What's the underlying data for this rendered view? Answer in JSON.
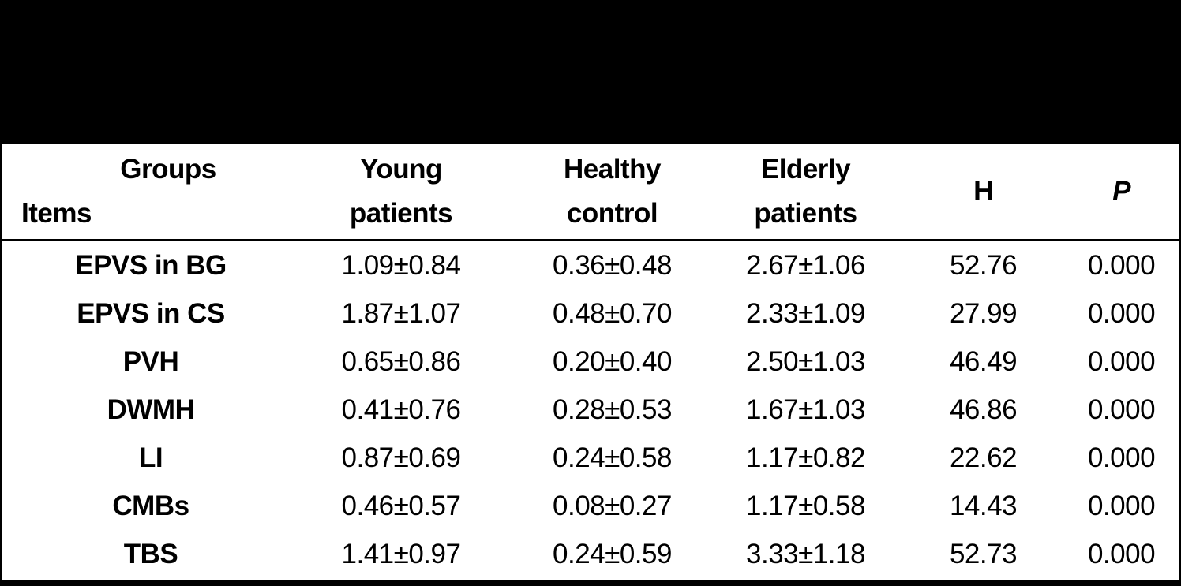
{
  "colors": {
    "band_background": "#000000",
    "table_background": "#ffffff",
    "text": "#000000",
    "border": "#000000"
  },
  "table": {
    "header": {
      "corner_top": "Groups",
      "corner_bottom": "Items",
      "col_young": {
        "line1": "Young",
        "line2": "patients"
      },
      "col_healthy": {
        "line1": "Healthy",
        "line2": "control"
      },
      "col_elderly": {
        "line1": "Elderly",
        "line2": "patients"
      },
      "col_h": "H",
      "col_p": "P"
    },
    "rows": [
      {
        "item": "EPVS in BG",
        "young": "1.09±0.84",
        "healthy": "0.36±0.48",
        "elderly": "2.67±1.06",
        "h": "52.76",
        "p": "0.000"
      },
      {
        "item": "EPVS in CS",
        "young": "1.87±1.07",
        "healthy": "0.48±0.70",
        "elderly": "2.33±1.09",
        "h": "27.99",
        "p": "0.000"
      },
      {
        "item": "PVH",
        "young": "0.65±0.86",
        "healthy": "0.20±0.40",
        "elderly": "2.50±1.03",
        "h": "46.49",
        "p": "0.000"
      },
      {
        "item": "DWMH",
        "young": "0.41±0.76",
        "healthy": "0.28±0.53",
        "elderly": "1.67±1.03",
        "h": "46.86",
        "p": "0.000"
      },
      {
        "item": "LI",
        "young": "0.87±0.69",
        "healthy": "0.24±0.58",
        "elderly": "1.17±0.82",
        "h": "22.62",
        "p": "0.000"
      },
      {
        "item": "CMBs",
        "young": "0.46±0.57",
        "healthy": "0.08±0.27",
        "elderly": "1.17±0.58",
        "h": "14.43",
        "p": "0.000"
      },
      {
        "item": "TBS",
        "young": "1.41±0.97",
        "healthy": "0.24±0.59",
        "elderly": "3.33±1.18",
        "h": "52.73",
        "p": "0.000"
      }
    ]
  }
}
